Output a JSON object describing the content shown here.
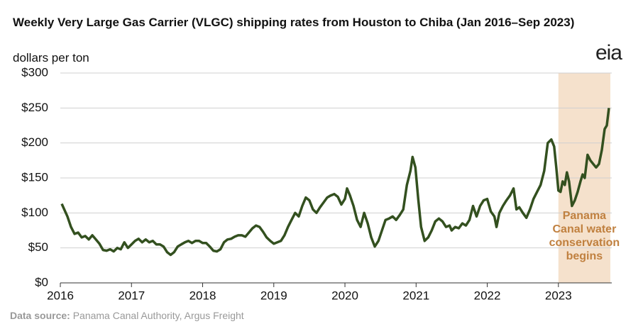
{
  "chart_data": {
    "type": "line",
    "title": "Weekly Very Large Gas Carrier (VLGC) shipping rates from Houston to Chiba (Jan 2016–Sep 2023)",
    "subtitle": "dollars per ton",
    "logo": "eia",
    "source_label": "Data source:",
    "source": "Panama Canal Authority, Argus Freight",
    "xlim": [
      2016,
      2023.75
    ],
    "xticks": [
      2016,
      2017,
      2018,
      2019,
      2020,
      2021,
      2022,
      2023
    ],
    "ylim": [
      0,
      300
    ],
    "yticks": [
      {
        "value": 0,
        "label": "$0"
      },
      {
        "value": 50,
        "label": "$50"
      },
      {
        "value": 100,
        "label": "$100"
      },
      {
        "value": 150,
        "label": "$150"
      },
      {
        "value": 200,
        "label": "$200"
      },
      {
        "value": 250,
        "label": "$250"
      },
      {
        "value": 300,
        "label": "$300"
      }
    ],
    "grid": true,
    "highlight": {
      "x": [
        2023.0,
        2023.73
      ],
      "color": "#f5e1cc",
      "text_color": "#c0803f",
      "lines": [
        "Panama",
        "Canal water",
        "conservation",
        "begins"
      ]
    },
    "series": [
      {
        "name": "VLGC rate",
        "color": "#33501f",
        "x": [
          2016.02,
          2016.1,
          2016.15,
          2016.2,
          2016.25,
          2016.3,
          2016.35,
          2016.4,
          2016.45,
          2016.5,
          2016.55,
          2016.6,
          2016.65,
          2016.7,
          2016.75,
          2016.8,
          2016.85,
          2016.9,
          2016.95,
          2017.0,
          2017.05,
          2017.1,
          2017.15,
          2017.2,
          2017.25,
          2017.3,
          2017.35,
          2017.4,
          2017.45,
          2017.5,
          2017.55,
          2017.6,
          2017.65,
          2017.7,
          2017.75,
          2017.8,
          2017.85,
          2017.9,
          2017.95,
          2018.0,
          2018.05,
          2018.1,
          2018.15,
          2018.2,
          2018.25,
          2018.3,
          2018.35,
          2018.4,
          2018.45,
          2018.5,
          2018.55,
          2018.6,
          2018.65,
          2018.7,
          2018.75,
          2018.8,
          2018.85,
          2018.9,
          2018.95,
          2019.0,
          2019.05,
          2019.1,
          2019.15,
          2019.2,
          2019.25,
          2019.3,
          2019.35,
          2019.4,
          2019.45,
          2019.5,
          2019.55,
          2019.6,
          2019.65,
          2019.7,
          2019.75,
          2019.8,
          2019.85,
          2019.9,
          2019.95,
          2020.0,
          2020.03,
          2020.07,
          2020.12,
          2020.17,
          2020.22,
          2020.27,
          2020.32,
          2020.37,
          2020.42,
          2020.47,
          2020.52,
          2020.57,
          2020.62,
          2020.67,
          2020.72,
          2020.77,
          2020.82,
          2020.87,
          2020.92,
          2020.95,
          2020.99,
          2021.03,
          2021.07,
          2021.12,
          2021.17,
          2021.22,
          2021.27,
          2021.32,
          2021.37,
          2021.42,
          2021.47,
          2021.5,
          2021.55,
          2021.6,
          2021.65,
          2021.7,
          2021.75,
          2021.8,
          2021.85,
          2021.9,
          2021.95,
          2022.0,
          2022.05,
          2022.1,
          2022.13,
          2022.17,
          2022.22,
          2022.27,
          2022.32,
          2022.37,
          2022.41,
          2022.45,
          2022.5,
          2022.55,
          2022.6,
          2022.65,
          2022.7,
          2022.75,
          2022.8,
          2022.85,
          2022.9,
          2022.94,
          2022.97,
          2023.0,
          2023.03,
          2023.06,
          2023.09,
          2023.12,
          2023.15,
          2023.19,
          2023.23,
          2023.27,
          2023.31,
          2023.34,
          2023.37,
          2023.41,
          2023.45,
          2023.49,
          2023.53,
          2023.57,
          2023.61,
          2023.65,
          2023.68,
          2023.71
        ],
        "values": [
          113,
          95,
          80,
          70,
          72,
          65,
          67,
          62,
          68,
          62,
          56,
          47,
          46,
          48,
          45,
          50,
          48,
          58,
          50,
          55,
          60,
          63,
          58,
          62,
          58,
          60,
          55,
          55,
          52,
          44,
          40,
          44,
          52,
          55,
          58,
          60,
          57,
          60,
          60,
          57,
          57,
          52,
          46,
          45,
          48,
          58,
          62,
          63,
          66,
          68,
          68,
          66,
          72,
          78,
          82,
          80,
          73,
          65,
          60,
          56,
          58,
          60,
          68,
          80,
          90,
          100,
          95,
          110,
          122,
          118,
          105,
          100,
          108,
          115,
          122,
          125,
          127,
          123,
          112,
          120,
          135,
          125,
          110,
          90,
          80,
          100,
          85,
          65,
          52,
          60,
          75,
          90,
          92,
          95,
          90,
          97,
          105,
          140,
          160,
          180,
          165,
          120,
          80,
          60,
          65,
          75,
          88,
          92,
          88,
          80,
          82,
          75,
          80,
          78,
          85,
          82,
          90,
          110,
          95,
          110,
          118,
          120,
          102,
          95,
          80,
          100,
          110,
          118,
          125,
          135,
          105,
          108,
          100,
          93,
          105,
          120,
          130,
          140,
          160,
          200,
          205,
          195,
          165,
          132,
          130,
          145,
          140,
          158,
          145,
          110,
          118,
          130,
          145,
          155,
          150,
          183,
          175,
          170,
          165,
          170,
          190,
          220,
          225,
          250
        ]
      }
    ]
  }
}
